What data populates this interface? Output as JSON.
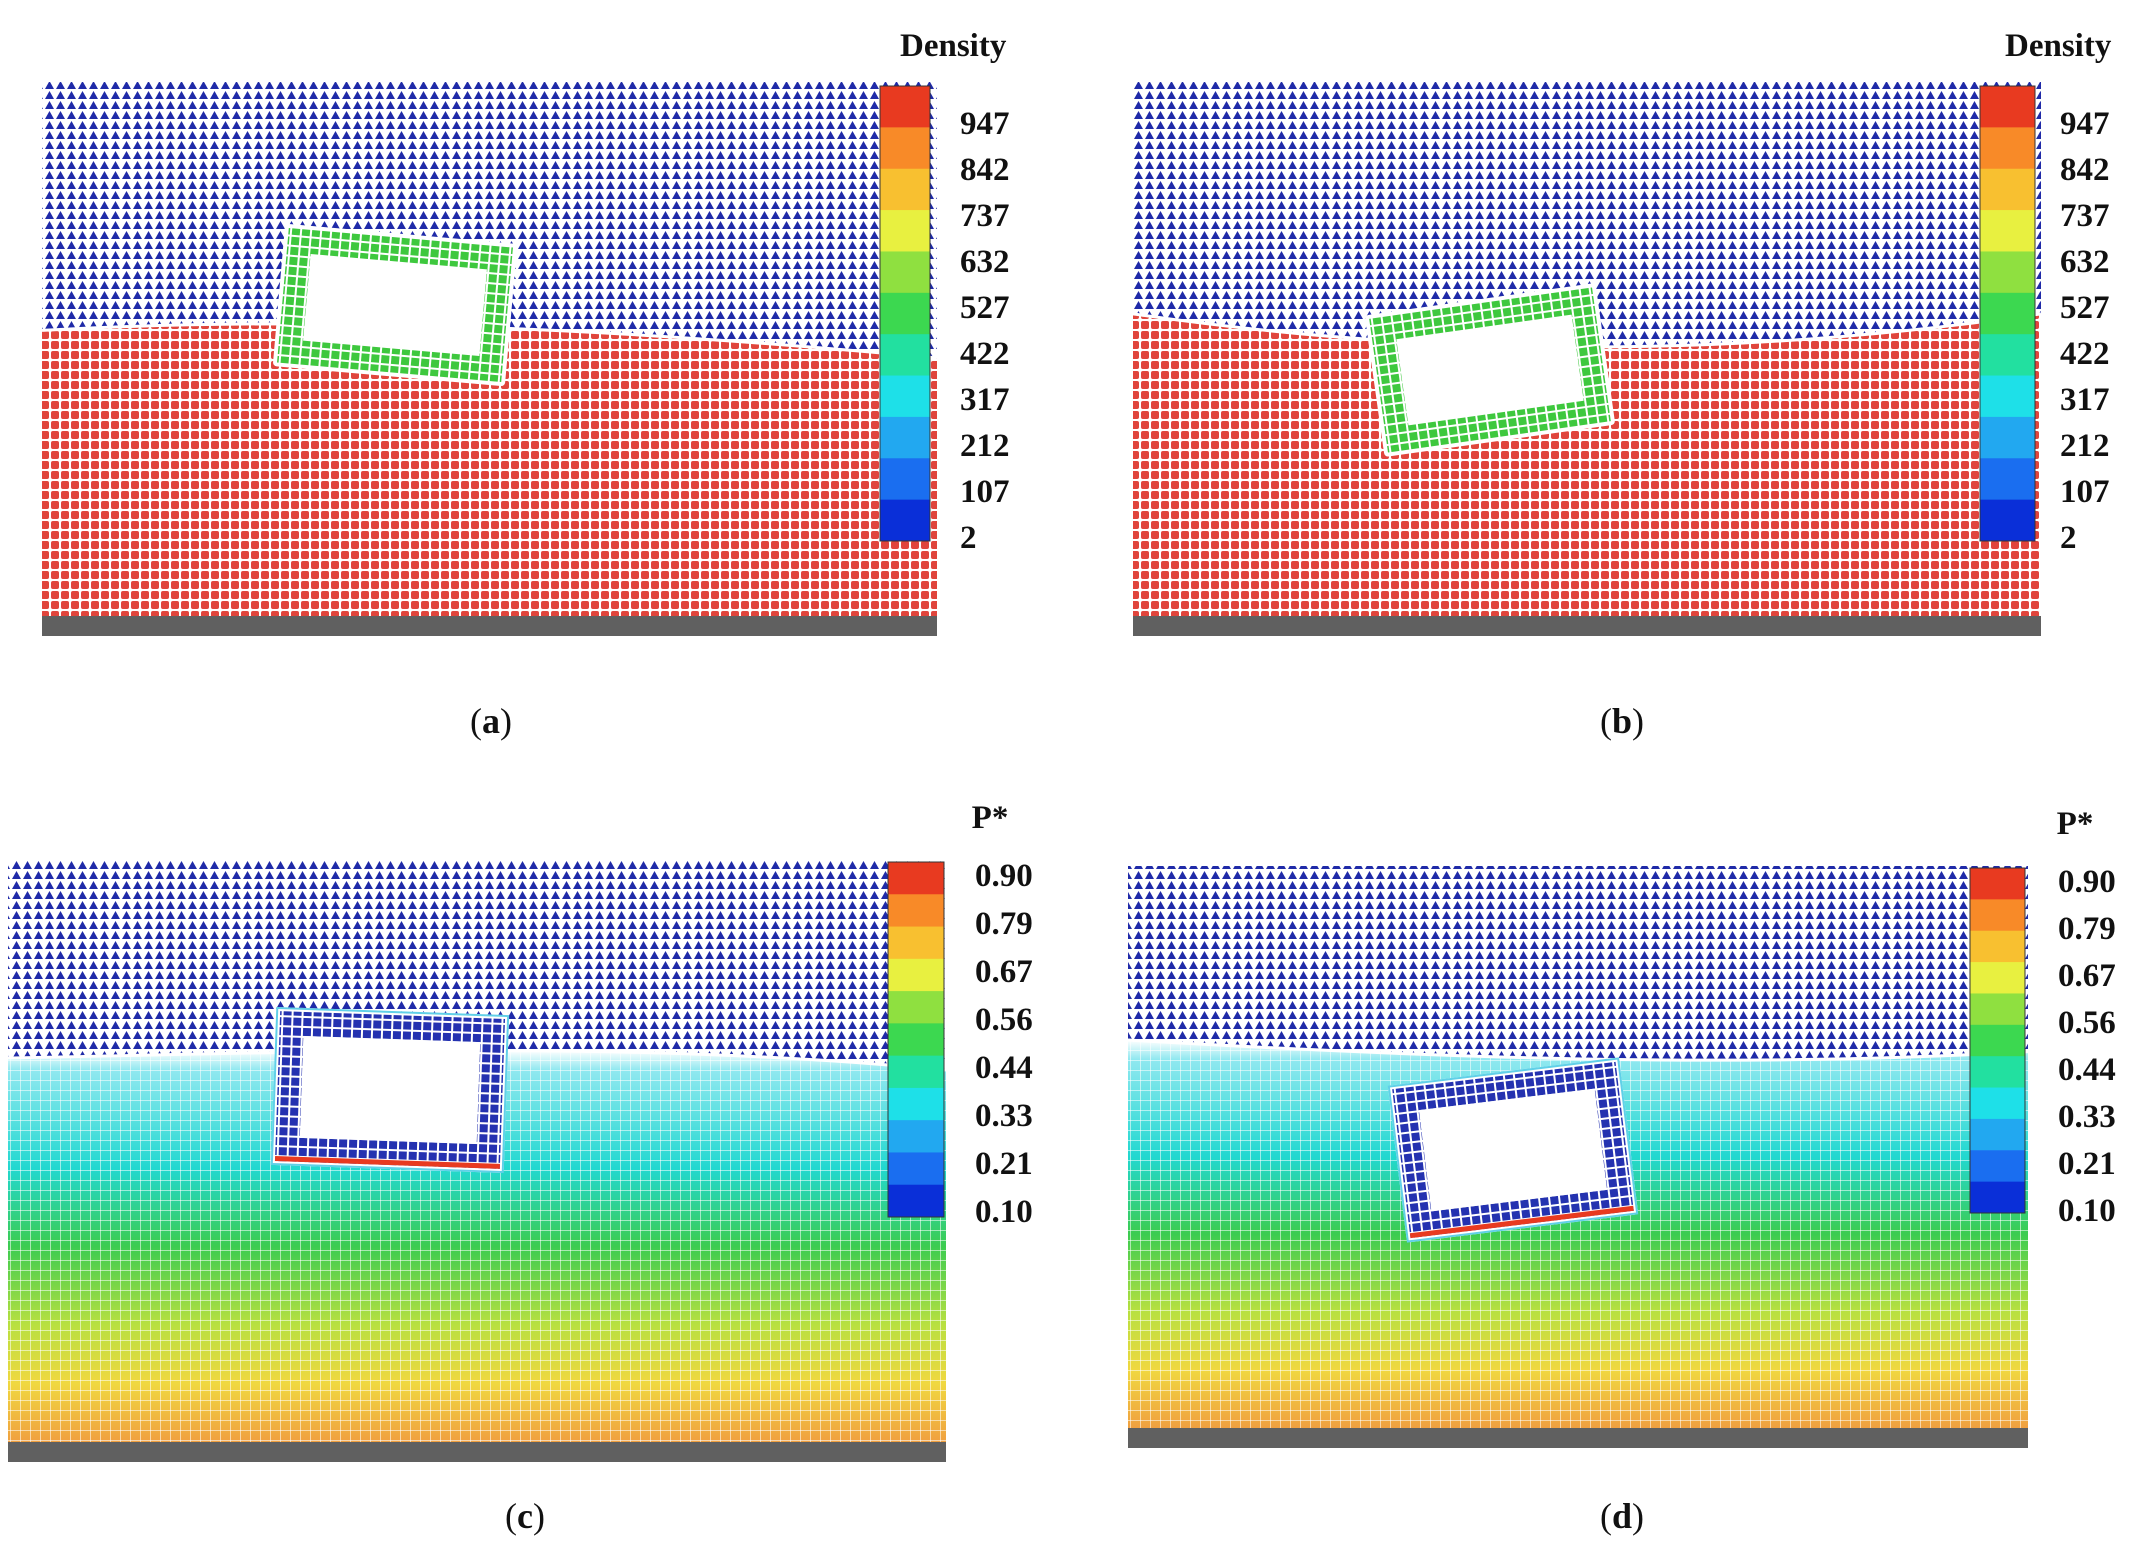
{
  "figure": {
    "panels": [
      {
        "id": "a",
        "field": "density",
        "colorbar": {
          "title": "Density",
          "labels": [
            "947",
            "842",
            "737",
            "632",
            "527",
            "422",
            "317",
            "212",
            "107",
            "2"
          ]
        },
        "body_tilt_deg": 5,
        "caption": {
          "open": "(",
          "letter": "a",
          "close": ")"
        }
      },
      {
        "id": "b",
        "field": "density",
        "colorbar": {
          "title": "Density",
          "labels": [
            "947",
            "842",
            "737",
            "632",
            "527",
            "422",
            "317",
            "212",
            "107",
            "2"
          ]
        },
        "body_tilt_deg": -8,
        "caption": {
          "open": "(",
          "letter": "b",
          "close": ")"
        }
      },
      {
        "id": "c",
        "field": "pressure",
        "colorbar": {
          "title": "P*",
          "labels": [
            "0.90",
            "0.79",
            "0.67",
            "0.56",
            "0.44",
            "0.33",
            "0.21",
            "0.10"
          ]
        },
        "body_tilt_deg": 2,
        "caption": {
          "open": "(",
          "letter": "c",
          "close": ")"
        }
      },
      {
        "id": "d",
        "field": "pressure",
        "colorbar": {
          "title": "P*",
          "labels": [
            "0.90",
            "0.79",
            "0.67",
            "0.56",
            "0.44",
            "0.33",
            "0.21",
            "0.10"
          ]
        },
        "body_tilt_deg": -7,
        "caption": {
          "open": "(",
          "letter": "d",
          "close": ")"
        }
      }
    ],
    "colors": {
      "air": "#1f2aa8",
      "water": "#e0453c",
      "body": "#3ec83e",
      "wall": "#606060",
      "colormap": [
        "#0a2fd8",
        "#1a6ef0",
        "#22a8f0",
        "#1ee0e8",
        "#22e0a0",
        "#3cd850",
        "#8fe040",
        "#e8f040",
        "#f8c030",
        "#f88a28",
        "#e83a20"
      ]
    }
  }
}
